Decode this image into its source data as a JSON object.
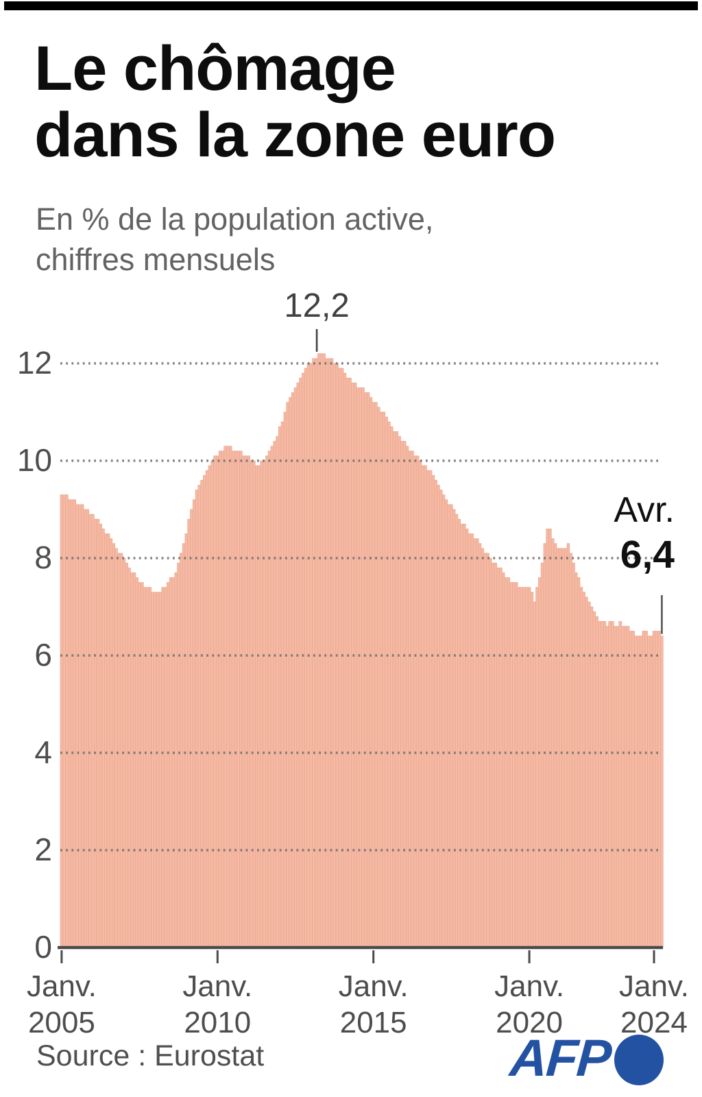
{
  "page": {
    "background": "#ffffff",
    "top_bar_color": "#000000"
  },
  "header": {
    "title_line1": "Le chômage",
    "title_line2": "dans la zone euro",
    "subtitle_line1": "En % de la population active,",
    "subtitle_line2": "chiffres mensuels"
  },
  "chart_data": {
    "type": "bar",
    "title": "Le chômage dans la zone euro",
    "subtitle": "En % de la population active, chiffres mensuels",
    "frequency": "monthly",
    "x_start": "2005-01",
    "x_end": "2024-04",
    "ylim": [
      0,
      12.4
    ],
    "y_ticks": [
      0,
      2,
      4,
      6,
      8,
      10,
      12
    ],
    "grid": "dotted-horizontal",
    "bar_color": "#f5b9a4",
    "bar_edge_color": "#eaa78e",
    "axis_color": "#4a4a4a",
    "grid_color": "#6e6e6e",
    "x_ticks": [
      {
        "line1": "Janv.",
        "line2": "2005",
        "month_index": 0
      },
      {
        "line1": "Janv.",
        "line2": "2010",
        "month_index": 60
      },
      {
        "line1": "Janv.",
        "line2": "2015",
        "month_index": 120
      },
      {
        "line1": "Janv.",
        "line2": "2020",
        "month_index": 180
      },
      {
        "line1": "Janv.",
        "line2": "2024",
        "month_index": 228
      }
    ],
    "annotations": {
      "peak": {
        "label": "12,2",
        "month": "2013-04",
        "month_index": 99,
        "value": 12.2
      },
      "last": {
        "line1": "Avr.",
        "line2": "6,4",
        "month": "2024-04",
        "month_index": 231,
        "value": 6.4
      }
    },
    "values": [
      9.3,
      9.3,
      9.3,
      9.2,
      9.2,
      9.2,
      9.1,
      9.1,
      9.1,
      9.0,
      9.0,
      8.9,
      8.9,
      8.8,
      8.8,
      8.7,
      8.6,
      8.5,
      8.5,
      8.4,
      8.3,
      8.2,
      8.1,
      8.1,
      8.0,
      7.9,
      7.8,
      7.7,
      7.7,
      7.6,
      7.5,
      7.5,
      7.4,
      7.4,
      7.4,
      7.3,
      7.3,
      7.3,
      7.3,
      7.4,
      7.4,
      7.5,
      7.6,
      7.6,
      7.7,
      7.9,
      8.1,
      8.3,
      8.5,
      8.8,
      9.0,
      9.2,
      9.4,
      9.5,
      9.6,
      9.7,
      9.8,
      9.9,
      10.0,
      10.1,
      10.1,
      10.2,
      10.2,
      10.3,
      10.3,
      10.3,
      10.2,
      10.2,
      10.2,
      10.2,
      10.1,
      10.1,
      10.1,
      10.0,
      10.0,
      9.9,
      9.9,
      10.0,
      10.0,
      10.1,
      10.2,
      10.3,
      10.4,
      10.5,
      10.7,
      10.8,
      11.0,
      11.2,
      11.3,
      11.4,
      11.5,
      11.6,
      11.7,
      11.8,
      11.9,
      12.0,
      12.0,
      12.1,
      12.1,
      12.2,
      12.2,
      12.2,
      12.1,
      12.1,
      12.1,
      12.0,
      12.0,
      11.9,
      11.9,
      11.8,
      11.7,
      11.7,
      11.6,
      11.6,
      11.5,
      11.5,
      11.5,
      11.4,
      11.4,
      11.3,
      11.2,
      11.2,
      11.1,
      11.0,
      11.0,
      10.9,
      10.8,
      10.7,
      10.6,
      10.6,
      10.5,
      10.4,
      10.4,
      10.3,
      10.2,
      10.2,
      10.1,
      10.1,
      10.0,
      9.9,
      9.9,
      9.8,
      9.8,
      9.7,
      9.6,
      9.5,
      9.4,
      9.3,
      9.2,
      9.1,
      9.1,
      9.0,
      8.9,
      8.8,
      8.7,
      8.7,
      8.6,
      8.5,
      8.5,
      8.4,
      8.4,
      8.3,
      8.2,
      8.1,
      8.1,
      8.0,
      7.9,
      7.9,
      7.8,
      7.8,
      7.7,
      7.6,
      7.6,
      7.5,
      7.5,
      7.5,
      7.4,
      7.4,
      7.4,
      7.4,
      7.4,
      7.3,
      7.1,
      7.4,
      7.6,
      7.9,
      8.3,
      8.6,
      8.6,
      8.4,
      8.3,
      8.2,
      8.2,
      8.2,
      8.2,
      8.3,
      8.1,
      7.9,
      7.7,
      7.6,
      7.4,
      7.3,
      7.2,
      7.1,
      7.0,
      6.9,
      6.8,
      6.7,
      6.7,
      6.7,
      6.6,
      6.7,
      6.7,
      6.6,
      6.6,
      6.7,
      6.6,
      6.6,
      6.6,
      6.5,
      6.5,
      6.4,
      6.4,
      6.4,
      6.5,
      6.5,
      6.4,
      6.4,
      6.5,
      6.5,
      6.5,
      6.4
    ]
  },
  "footer": {
    "source": "Source : Eurostat",
    "afp_label": "AFP",
    "afp_color": "#2352a3"
  }
}
